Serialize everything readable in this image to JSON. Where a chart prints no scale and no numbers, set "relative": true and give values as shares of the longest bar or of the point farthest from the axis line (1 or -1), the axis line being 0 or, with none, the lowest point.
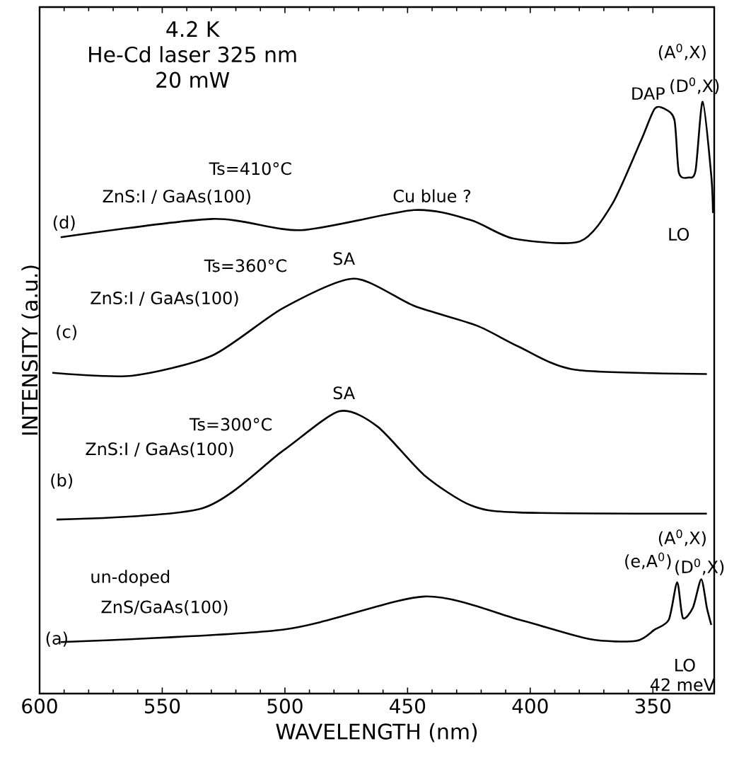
{
  "chart_data": {
    "type": "line",
    "relative": true,
    "xlabel": "WAVELENGTH (nm)",
    "ylabel": "INTENSITY (a.u.)",
    "xlim": [
      600,
      325
    ],
    "xticks": [
      600,
      550,
      500,
      450,
      400,
      350
    ],
    "marker": "none",
    "line_style": "solid",
    "series": [
      {
        "color": "#000000",
        "x": [
          591.4,
          529.7,
          493.4,
          447.3,
          424.2,
          406.9,
          379.8,
          366.6,
          355.0,
          349.3,
          345.2,
          341.2,
          339.4,
          335.4,
          332.6,
          329.7,
          326.2,
          325.5
        ],
        "values": [
          0.771,
          0.802,
          0.783,
          0.817,
          0.8,
          0.769,
          0.764,
          0.827,
          0.933,
          0.988,
          0.988,
          0.969,
          0.88,
          0.872,
          0.884,
          1.0,
          0.875,
          0.812
        ]
      },
      {
        "color": "#000000",
        "x": [
          594.8,
          562.5,
          529.7,
          500.9,
          472.0,
          447.3,
          421.9,
          404.6,
          381.6,
          328.0
        ],
        "values": [
          0.542,
          0.537,
          0.571,
          0.651,
          0.701,
          0.655,
          0.622,
          0.586,
          0.547,
          0.54
        ]
      },
      {
        "color": "#000000",
        "x": [
          593.1,
          533.7,
          500.9,
          477.8,
          462.2,
          443.2,
          424.2,
          404.6,
          328.0
        ],
        "values": [
          0.294,
          0.313,
          0.41,
          0.477,
          0.451,
          0.369,
          0.318,
          0.306,
          0.304
        ]
      },
      {
        "color": "#000000",
        "x": [
          591.4,
          500.9,
          443.2,
          404.6,
          375.8,
          356.8,
          349.3,
          343.5,
          340.1,
          337.8,
          333.7,
          330.3,
          328.0,
          326.2
        ],
        "values": [
          0.087,
          0.108,
          0.164,
          0.125,
          0.092,
          0.089,
          0.108,
          0.125,
          0.188,
          0.128,
          0.145,
          0.193,
          0.145,
          0.116
        ]
      }
    ],
    "annotations": [
      "4.2 K",
      "He-Cd laser 325 nm",
      "20 mW",
      "Ts=410°C",
      "ZnS:I / GaAs(100)",
      "(d)",
      "Cu blue ?",
      "DAP",
      "(A$^{0}$,X)",
      "(D$^{0}$,X)",
      "LO",
      "SA",
      "Ts=360°C",
      "ZnS:I / GaAs(100)",
      "(c)",
      "SA",
      "Ts=300°C",
      "ZnS:I / GaAs(100)",
      "(b)",
      "un-doped",
      "ZnS/GaAs(100)",
      "(a)",
      "(e,A$^{0}$)",
      "(A$^{0}$,X)",
      "(D$^{0}$,X)",
      "LO",
      "42 meV"
    ]
  }
}
